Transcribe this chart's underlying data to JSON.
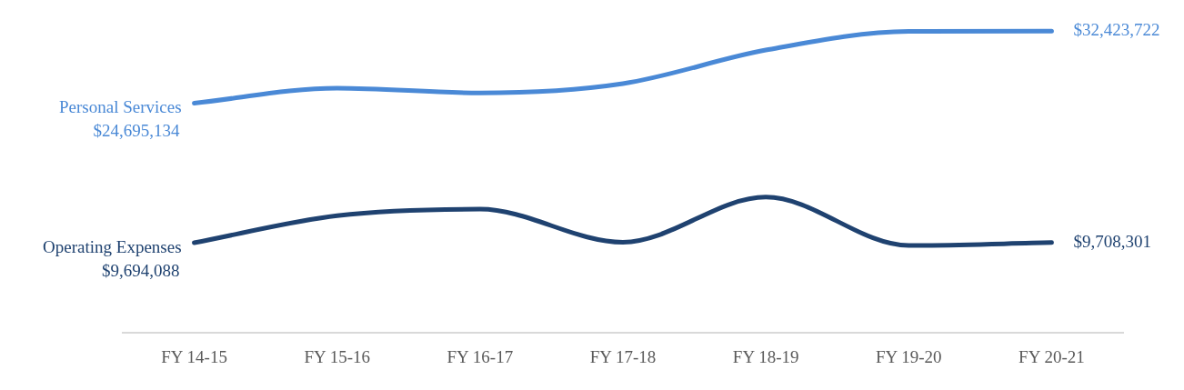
{
  "chart_data": {
    "type": "line",
    "categories": [
      "FY 14-15",
      "FY 15-16",
      "FY 16-17",
      "FY 17-18",
      "FY 18-19",
      "FY 19-20",
      "FY 20-21"
    ],
    "series": [
      {
        "name": "Personal Services",
        "color": "#4a89d6",
        "values": [
          24695134,
          26300000,
          25800000,
          26800000,
          30400000,
          32400000,
          32423722
        ],
        "value_labels": [
          "$24,695,134",
          null,
          null,
          null,
          null,
          null,
          "$32,423,722"
        ]
      },
      {
        "name": "Operating Expenses",
        "color": "#1f4270",
        "values": [
          9694088,
          12600000,
          13300000,
          9750000,
          14600000,
          9400000,
          9708301
        ],
        "value_labels": [
          "$9,694,088",
          null,
          null,
          null,
          null,
          null,
          "$9,708,301"
        ]
      }
    ],
    "tick_labels": "x",
    "grid": false,
    "legend": false,
    "marker": "none",
    "line_style": "solid"
  }
}
